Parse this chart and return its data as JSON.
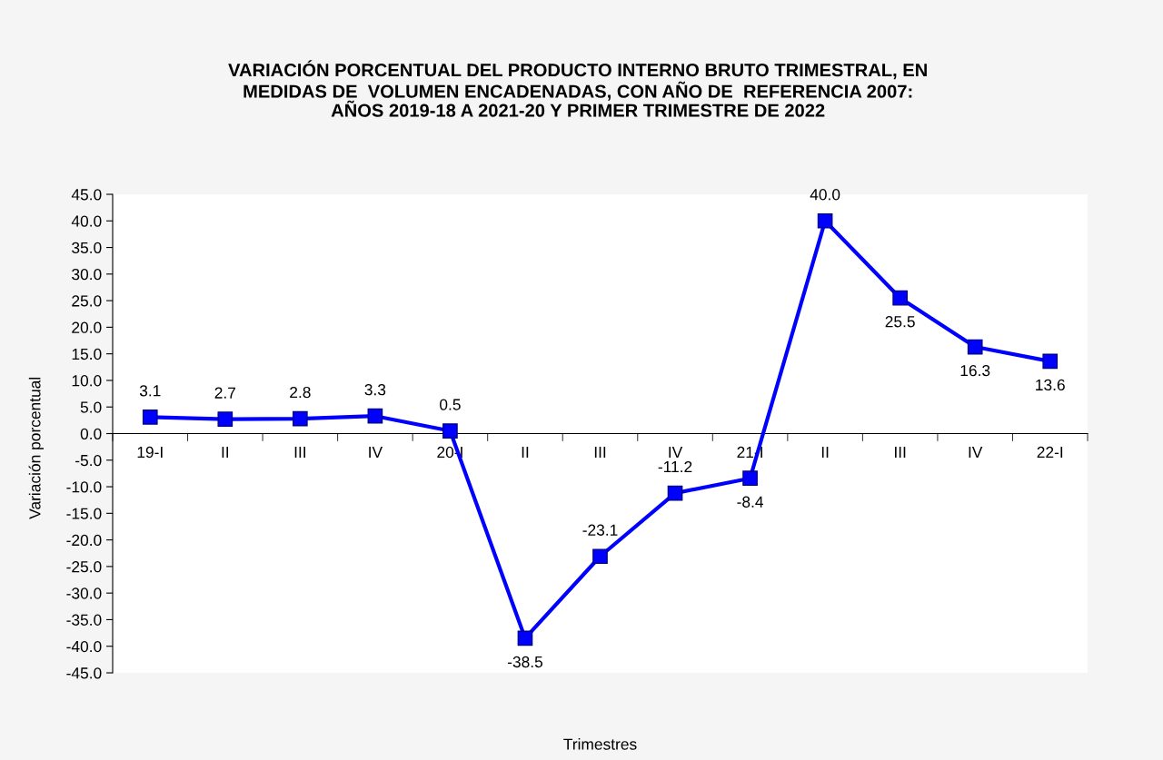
{
  "chart_data": {
    "type": "line",
    "title": "VARIACIÓN PORCENTUAL DEL PRODUCTO INTERNO BRUTO TRIMESTRAL, EN\nMEDIDAS DE  VOLUMEN ENCADENADAS, CON AÑO DE  REFERENCIA 2007:\nAÑOS 2019-18 A 2021-20 Y PRIMER TRIMESTRE DE 2022",
    "xlabel": "Trimestres",
    "ylabel": "Variación porcentual",
    "categories": [
      "19-I",
      "II",
      "III",
      "IV",
      "20-I",
      "II",
      "III",
      "IV",
      "21-I",
      "II",
      "III",
      "IV",
      "22-I"
    ],
    "series": [
      {
        "color": "#0000ff",
        "values": [
          3.1,
          2.7,
          2.8,
          3.3,
          0.5,
          -38.5,
          -23.1,
          -11.2,
          -8.4,
          40.0,
          25.5,
          16.3,
          13.6
        ],
        "value_labels": [
          "3.1",
          "2.7",
          "2.8",
          "3.3",
          "0.5",
          "-38.5",
          "-23.1",
          "-11.2",
          "-8.4",
          "40.0",
          "25.5",
          "16.3",
          "13.6"
        ]
      }
    ],
    "ylim": [
      -45,
      45
    ],
    "yticks": [
      {
        "value": -45,
        "label": "-45.0"
      },
      {
        "value": -40,
        "label": "-40.0"
      },
      {
        "value": -35,
        "label": "-35.0"
      },
      {
        "value": -30,
        "label": "-30.0"
      },
      {
        "value": -25,
        "label": "-25.0"
      },
      {
        "value": -20,
        "label": "-20.0"
      },
      {
        "value": -15,
        "label": "-15.0"
      },
      {
        "value": -10,
        "label": "-10.0"
      },
      {
        "value": -5,
        "label": "-5.0"
      },
      {
        "value": 0,
        "label": "0.0"
      },
      {
        "value": 5,
        "label": "5.0"
      },
      {
        "value": 10,
        "label": "10.0"
      },
      {
        "value": 15,
        "label": "15.0"
      },
      {
        "value": 20,
        "label": "20.0"
      },
      {
        "value": 25,
        "label": "25.0"
      },
      {
        "value": 30,
        "label": "30.0"
      },
      {
        "value": 35,
        "label": "35.0"
      },
      {
        "value": 40,
        "label": "40.0"
      },
      {
        "value": 45,
        "label": "45.0"
      }
    ],
    "grid": false,
    "marker": "square",
    "line_style": "solid"
  }
}
